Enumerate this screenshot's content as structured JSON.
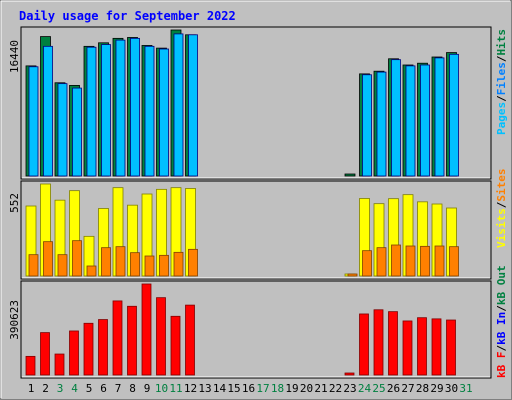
{
  "title": "Daily usage for September 2022",
  "colors": {
    "background": "#c0c0c0",
    "panel": "#c0c0c0",
    "title": "#0000ff",
    "hits": "#008040",
    "files": "#0080ff",
    "files_face": "#00c0ff",
    "pages": "#00c0ff",
    "visits": "#ffff00",
    "sites": "#ff8000",
    "kb_f": "#ff0000",
    "kb_in": "#0000ff",
    "kb_out": "#008040",
    "weekend_day": "#008040",
    "weekday": "#000000"
  },
  "chart_data": [
    {
      "type": "bar",
      "panel": "top",
      "max_label": "16440",
      "legend": [
        {
          "text": "Pages",
          "color_key": "pages"
        },
        {
          "text": "/",
          "color_key": "weekday"
        },
        {
          "text": "Files",
          "color_key": "files"
        },
        {
          "text": "/",
          "color_key": "weekday"
        },
        {
          "text": "Hits",
          "color_key": "hits"
        }
      ],
      "categories": [
        "1",
        "2",
        "3",
        "4",
        "5",
        "6",
        "7",
        "8",
        "9",
        "10",
        "11",
        "12",
        "13",
        "14",
        "15",
        "16",
        "17",
        "18",
        "19",
        "20",
        "21",
        "22",
        "23",
        "24",
        "25",
        "26",
        "27",
        "28",
        "29",
        "30",
        "31"
      ],
      "series": [
        {
          "name": "Hits",
          "values": [
            12400,
            15700,
            10500,
            10200,
            14600,
            15000,
            15500,
            15600,
            14700,
            14400,
            16440,
            15900,
            0,
            0,
            0,
            0,
            0,
            0,
            0,
            0,
            0,
            0,
            150,
            11500,
            11800,
            13200,
            12500,
            12700,
            13400,
            13900,
            0
          ]
        },
        {
          "name": "Files",
          "values": [
            12300,
            14600,
            10400,
            9900,
            14500,
            14800,
            15300,
            15500,
            14600,
            14300,
            16000,
            15900,
            0,
            0,
            0,
            0,
            0,
            0,
            0,
            0,
            0,
            0,
            0,
            11400,
            11700,
            13100,
            12400,
            12500,
            13300,
            13700,
            0
          ]
        }
      ]
    },
    {
      "type": "bar",
      "panel": "middle",
      "max_label": "552",
      "legend": [
        {
          "text": "Visits",
          "color_key": "visits"
        },
        {
          "text": "/",
          "color_key": "weekday"
        },
        {
          "text": "Sites",
          "color_key": "sites"
        }
      ],
      "categories": [
        "1",
        "2",
        "3",
        "4",
        "5",
        "6",
        "7",
        "8",
        "9",
        "10",
        "11",
        "12",
        "13",
        "14",
        "15",
        "16",
        "17",
        "18",
        "19",
        "20",
        "21",
        "22",
        "23",
        "24",
        "25",
        "26",
        "27",
        "28",
        "29",
        "30",
        "31"
      ],
      "series": [
        {
          "name": "Visits",
          "values": [
            420,
            552,
            455,
            512,
            238,
            405,
            530,
            425,
            492,
            520,
            530,
            525,
            0,
            0,
            0,
            0,
            0,
            0,
            0,
            0,
            0,
            0,
            10,
            465,
            434,
            464,
            488,
            445,
            432,
            408,
            0
          ]
        },
        {
          "name": "Sites",
          "values": [
            128,
            206,
            128,
            212,
            60,
            170,
            176,
            140,
            120,
            124,
            142,
            160,
            0,
            0,
            0,
            0,
            0,
            0,
            0,
            0,
            0,
            0,
            10,
            152,
            170,
            186,
            180,
            178,
            180,
            176,
            0
          ]
        }
      ]
    },
    {
      "type": "bar",
      "panel": "bottom",
      "max_label": "390623",
      "legend": [
        {
          "text": "kB F",
          "color_key": "kb_f"
        },
        {
          "text": "/",
          "color_key": "weekday"
        },
        {
          "text": "kB In",
          "color_key": "kb_in"
        },
        {
          "text": "/",
          "color_key": "weekday"
        },
        {
          "text": "kB Out",
          "color_key": "kb_out"
        }
      ],
      "categories": [
        "1",
        "2",
        "3",
        "4",
        "5",
        "6",
        "7",
        "8",
        "9",
        "10",
        "11",
        "12",
        "13",
        "14",
        "15",
        "16",
        "17",
        "18",
        "19",
        "20",
        "21",
        "22",
        "23",
        "24",
        "25",
        "26",
        "27",
        "28",
        "29",
        "30",
        "31"
      ],
      "series": [
        {
          "name": "kB F",
          "values": [
            80000,
            182000,
            90000,
            189000,
            222000,
            238000,
            318000,
            295000,
            390623,
            332000,
            252000,
            300000,
            0,
            0,
            0,
            0,
            0,
            0,
            0,
            0,
            0,
            0,
            4000,
            262000,
            280000,
            272000,
            232000,
            246000,
            241000,
            236000,
            0
          ]
        }
      ]
    }
  ],
  "x_axis": {
    "labels": [
      "1",
      "2",
      "3",
      "4",
      "5",
      "6",
      "7",
      "8",
      "9",
      "10",
      "11",
      "12",
      "13",
      "14",
      "15",
      "16",
      "17",
      "18",
      "19",
      "20",
      "21",
      "22",
      "23",
      "24",
      "25",
      "26",
      "27",
      "28",
      "29",
      "30",
      "31"
    ],
    "weekend": [
      3,
      4,
      10,
      11,
      17,
      18,
      24,
      25,
      31
    ]
  }
}
